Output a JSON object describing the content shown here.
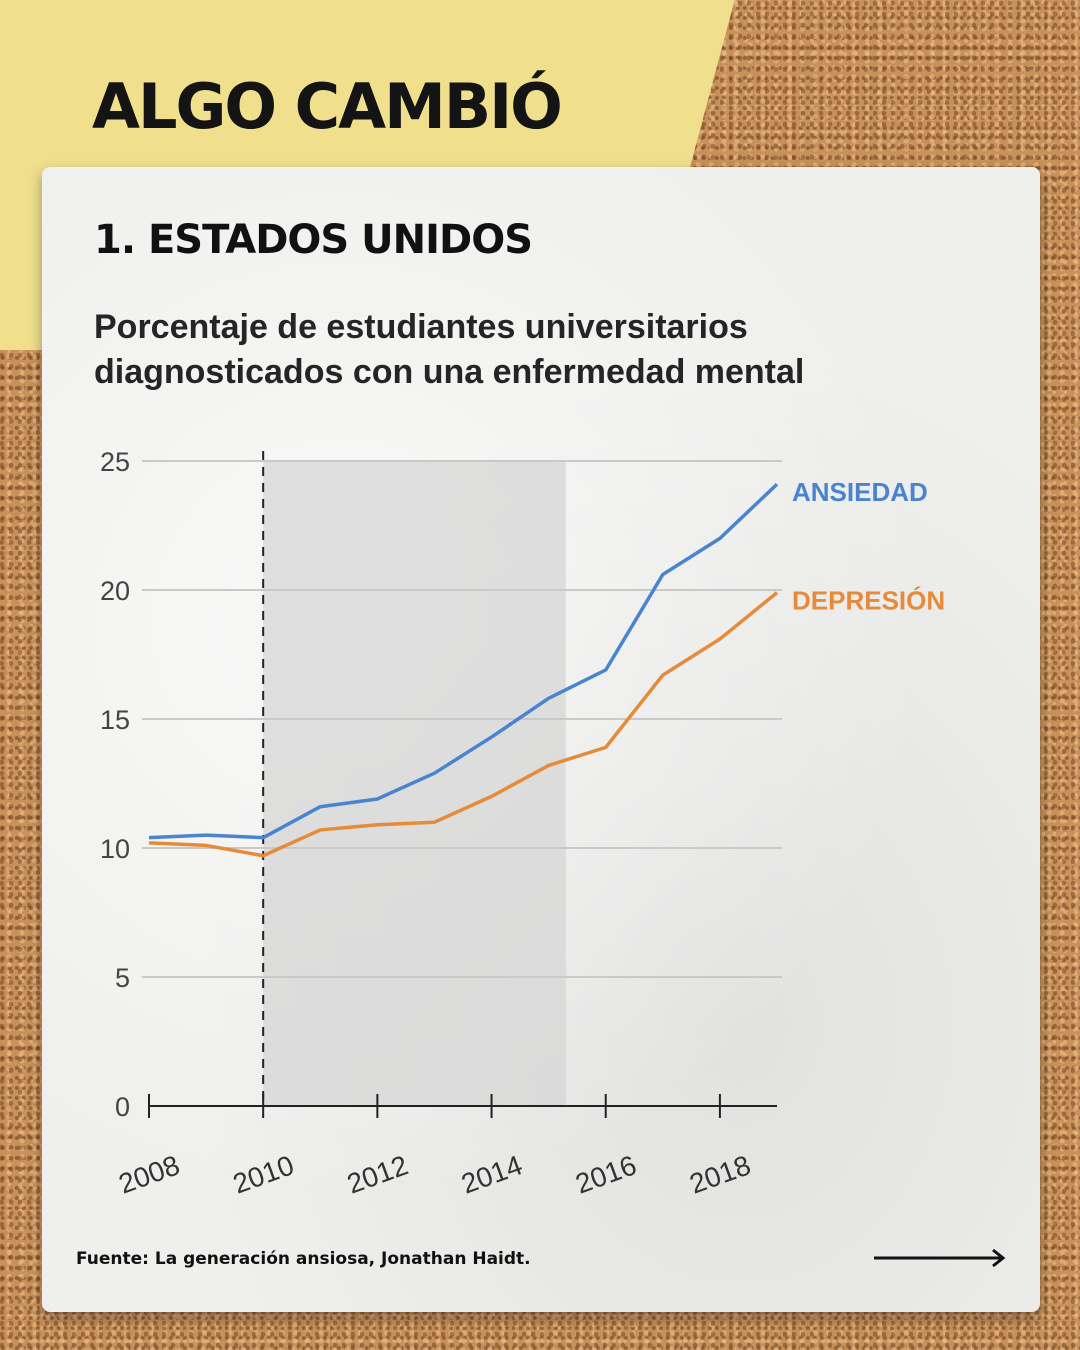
{
  "header": {
    "title": "ALGO CAMBIÓ"
  },
  "card": {
    "section_title": "1. ESTADOS UNIDOS",
    "subtitle": "Porcentaje de estudiantes universitarios diagnosticados con una enfermedad mental",
    "source": "Fuente: La generación ansiosa, Jonathan Haidt."
  },
  "colors": {
    "ansiedad": "#4a84cf",
    "depresion": "#e58b3a",
    "shade": "#d6d6d6",
    "sticky": "#f0e08e"
  },
  "navigation": {
    "next_icon": "arrow-right-icon"
  },
  "chart_data": {
    "type": "line",
    "title": "Porcentaje de estudiantes universitarios diagnosticados con una enfermedad mental",
    "xlabel": "",
    "ylabel": "",
    "xlim": [
      2008,
      2019
    ],
    "ylim": [
      0,
      25
    ],
    "yticks": [
      0,
      5,
      10,
      15,
      20,
      25
    ],
    "xticks": [
      2008,
      2010,
      2012,
      2014,
      2016,
      2018
    ],
    "grid": true,
    "shaded_region": [
      2010,
      2015.3
    ],
    "reference_line_x": 2010,
    "series": [
      {
        "name": "ANSIEDAD",
        "color": "#4a84cf",
        "x": [
          2008,
          2009,
          2010,
          2011,
          2012,
          2013,
          2014,
          2015,
          2016,
          2017,
          2018,
          2019
        ],
        "values": [
          10.4,
          10.5,
          10.4,
          11.6,
          11.9,
          12.9,
          14.3,
          15.8,
          16.9,
          20.6,
          22.0,
          24.1
        ]
      },
      {
        "name": "DEPRESIÓN",
        "color": "#e58b3a",
        "x": [
          2008,
          2009,
          2010,
          2011,
          2012,
          2013,
          2014,
          2015,
          2016,
          2017,
          2018,
          2019
        ],
        "values": [
          10.2,
          10.1,
          9.7,
          10.7,
          10.9,
          11.0,
          12.0,
          13.2,
          13.9,
          16.7,
          18.1,
          19.9
        ]
      }
    ]
  }
}
